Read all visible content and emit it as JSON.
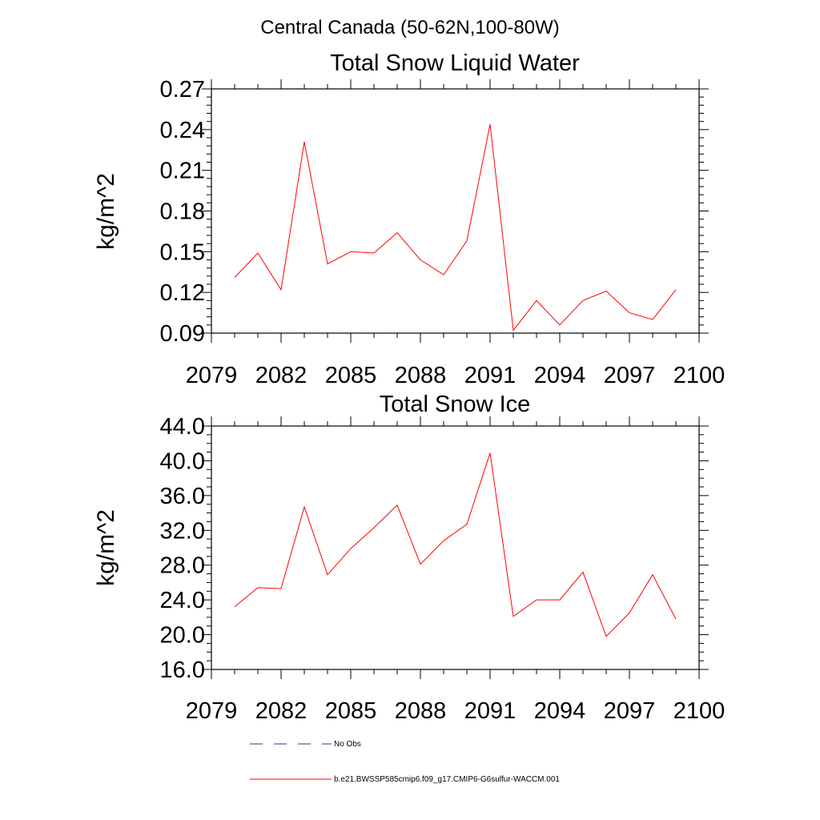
{
  "figure": {
    "main_title": "Central Canada (50-62N,100-80W)"
  },
  "colors": {
    "series": "#ff0000",
    "no_obs": "#2b3a8c",
    "axis": "#000000"
  },
  "legend": {
    "entries": [
      {
        "label": "No Obs",
        "style": "dashed",
        "color": "#2b3a8c"
      },
      {
        "label": "b.e21.BWSSP585cmip6.f09_g17.CMIP6-G6sulfur-WACCM.001",
        "style": "solid",
        "color": "#ff0000"
      }
    ]
  },
  "chart_data": [
    {
      "type": "line",
      "title": "Total Snow Liquid Water",
      "xlabel": "",
      "ylabel": "kg/m^2",
      "xlim": [
        2079,
        2100
      ],
      "ylim": [
        0.09,
        0.27
      ],
      "x_ticks": [
        "2079",
        "2082",
        "2085",
        "2088",
        "2091",
        "2094",
        "2097",
        "2100"
      ],
      "y_ticks": [
        "0.09",
        "0.12",
        "0.15",
        "0.18",
        "0.21",
        "0.24",
        "0.27"
      ],
      "x": [
        2080,
        2081,
        2082,
        2083,
        2084,
        2085,
        2086,
        2087,
        2088,
        2089,
        2090,
        2091,
        2092,
        2093,
        2094,
        2095,
        2096,
        2097,
        2098,
        2099
      ],
      "series": [
        {
          "name": "b.e21.BWSSP585cmip6.f09_g17.CMIP6-G6sulfur-WACCM.001",
          "values": [
            0.131,
            0.149,
            0.122,
            0.231,
            0.141,
            0.15,
            0.149,
            0.164,
            0.144,
            0.133,
            0.158,
            0.244,
            0.092,
            0.114,
            0.096,
            0.114,
            0.121,
            0.105,
            0.1,
            0.122
          ]
        }
      ],
      "grid": false,
      "legend_position": "below"
    },
    {
      "type": "line",
      "title": "Total Snow Ice",
      "xlabel": "",
      "ylabel": "kg/m^2",
      "xlim": [
        2079,
        2100
      ],
      "ylim": [
        16.0,
        44.0
      ],
      "x_ticks": [
        "2079",
        "2082",
        "2085",
        "2088",
        "2091",
        "2094",
        "2097",
        "2100"
      ],
      "y_ticks": [
        "16.0",
        "20.0",
        "24.0",
        "28.0",
        "32.0",
        "36.0",
        "40.0",
        "44.0"
      ],
      "x": [
        2080,
        2081,
        2082,
        2083,
        2084,
        2085,
        2086,
        2087,
        2088,
        2089,
        2090,
        2091,
        2092,
        2093,
        2094,
        2095,
        2096,
        2097,
        2098,
        2099
      ],
      "series": [
        {
          "name": "b.e21.BWSSP585cmip6.f09_g17.CMIP6-G6sulfur-WACCM.001",
          "values": [
            23.2,
            25.4,
            25.3,
            34.7,
            26.9,
            29.9,
            32.3,
            34.9,
            28.1,
            30.8,
            32.7,
            40.9,
            22.1,
            24.0,
            24.0,
            27.2,
            19.8,
            22.5,
            26.9,
            21.8
          ]
        }
      ],
      "grid": false,
      "legend_position": "below"
    }
  ]
}
